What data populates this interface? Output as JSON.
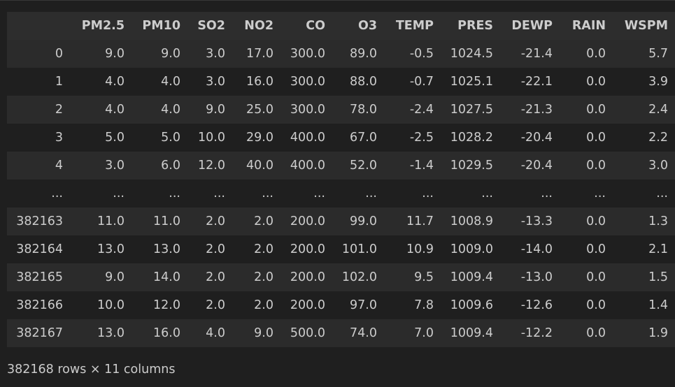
{
  "table": {
    "columns": [
      "",
      "PM2.5",
      "PM10",
      "SO2",
      "NO2",
      "CO",
      "O3",
      "TEMP",
      "PRES",
      "DEWP",
      "RAIN",
      "WSPM"
    ],
    "rows": [
      [
        "0",
        "9.0",
        "9.0",
        "3.0",
        "17.0",
        "300.0",
        "89.0",
        "-0.5",
        "1024.5",
        "-21.4",
        "0.0",
        "5.7"
      ],
      [
        "1",
        "4.0",
        "4.0",
        "3.0",
        "16.0",
        "300.0",
        "88.0",
        "-0.7",
        "1025.1",
        "-22.1",
        "0.0",
        "3.9"
      ],
      [
        "2",
        "4.0",
        "4.0",
        "9.0",
        "25.0",
        "300.0",
        "78.0",
        "-2.4",
        "1027.5",
        "-21.3",
        "0.0",
        "2.4"
      ],
      [
        "3",
        "5.0",
        "5.0",
        "10.0",
        "29.0",
        "400.0",
        "67.0",
        "-2.5",
        "1028.2",
        "-20.4",
        "0.0",
        "2.2"
      ],
      [
        "4",
        "3.0",
        "6.0",
        "12.0",
        "40.0",
        "400.0",
        "52.0",
        "-1.4",
        "1029.5",
        "-20.4",
        "0.0",
        "3.0"
      ],
      [
        "...",
        "...",
        "...",
        "...",
        "...",
        "...",
        "...",
        "...",
        "...",
        "...",
        "...",
        "..."
      ],
      [
        "382163",
        "11.0",
        "11.0",
        "2.0",
        "2.0",
        "200.0",
        "99.0",
        "11.7",
        "1008.9",
        "-13.3",
        "0.0",
        "1.3"
      ],
      [
        "382164",
        "13.0",
        "13.0",
        "2.0",
        "2.0",
        "200.0",
        "101.0",
        "10.9",
        "1009.0",
        "-14.0",
        "0.0",
        "2.1"
      ],
      [
        "382165",
        "9.0",
        "14.0",
        "2.0",
        "2.0",
        "200.0",
        "102.0",
        "9.5",
        "1009.4",
        "-13.0",
        "0.0",
        "1.5"
      ],
      [
        "382166",
        "10.0",
        "12.0",
        "2.0",
        "2.0",
        "200.0",
        "97.0",
        "7.8",
        "1009.6",
        "-12.6",
        "0.0",
        "1.4"
      ],
      [
        "382167",
        "13.0",
        "16.0",
        "4.0",
        "9.0",
        "500.0",
        "74.0",
        "7.0",
        "1009.4",
        "-12.2",
        "0.0",
        "1.9"
      ]
    ]
  },
  "summary": "382168 rows × 11 columns"
}
